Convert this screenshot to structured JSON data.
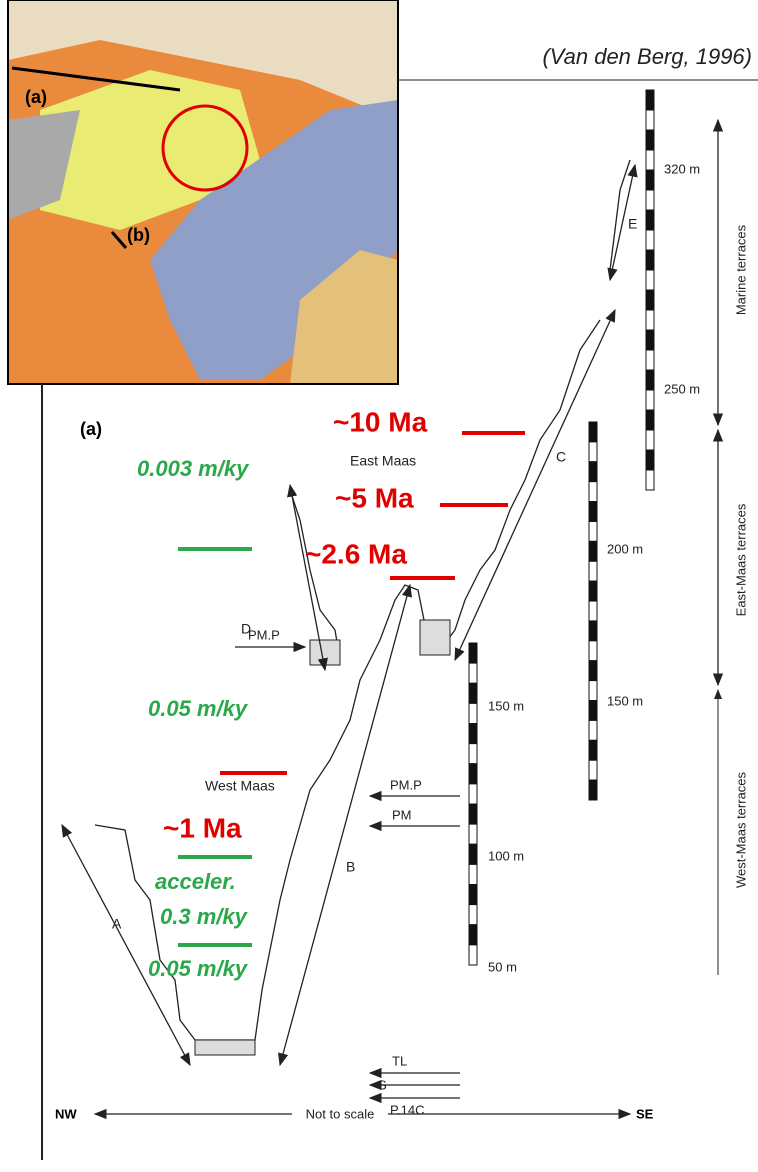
{
  "citation": "(Van den Berg, 1996)",
  "map": {
    "labels": [
      "(a)",
      "(b)"
    ]
  },
  "section": {
    "label": "(a)",
    "ages": [
      "~10 Ma",
      "~5 Ma",
      "~2.6 Ma",
      "~1 Ma"
    ],
    "rates": [
      "0.003 m/ky",
      "0.05 m/ky",
      "acceler.",
      "0.3 m/ky",
      "0.05 m/ky"
    ],
    "rivers": [
      "East Maas",
      "West Maas"
    ],
    "sequences": [
      "A",
      "B",
      "C",
      "D",
      "E"
    ],
    "markers": [
      "PM.P",
      "PM.P",
      "PM",
      "TL",
      "S",
      "P.14C"
    ],
    "scales": [
      "320 m",
      "250 m",
      "200 m",
      "150 m",
      "150 m",
      "100 m",
      "50 m"
    ],
    "terrace_groups": [
      "Marine terraces",
      "East-Maas terraces",
      "West-Maas terraces"
    ],
    "axis": {
      "left": "NW",
      "middle": "Not to scale",
      "right": "SE"
    }
  }
}
